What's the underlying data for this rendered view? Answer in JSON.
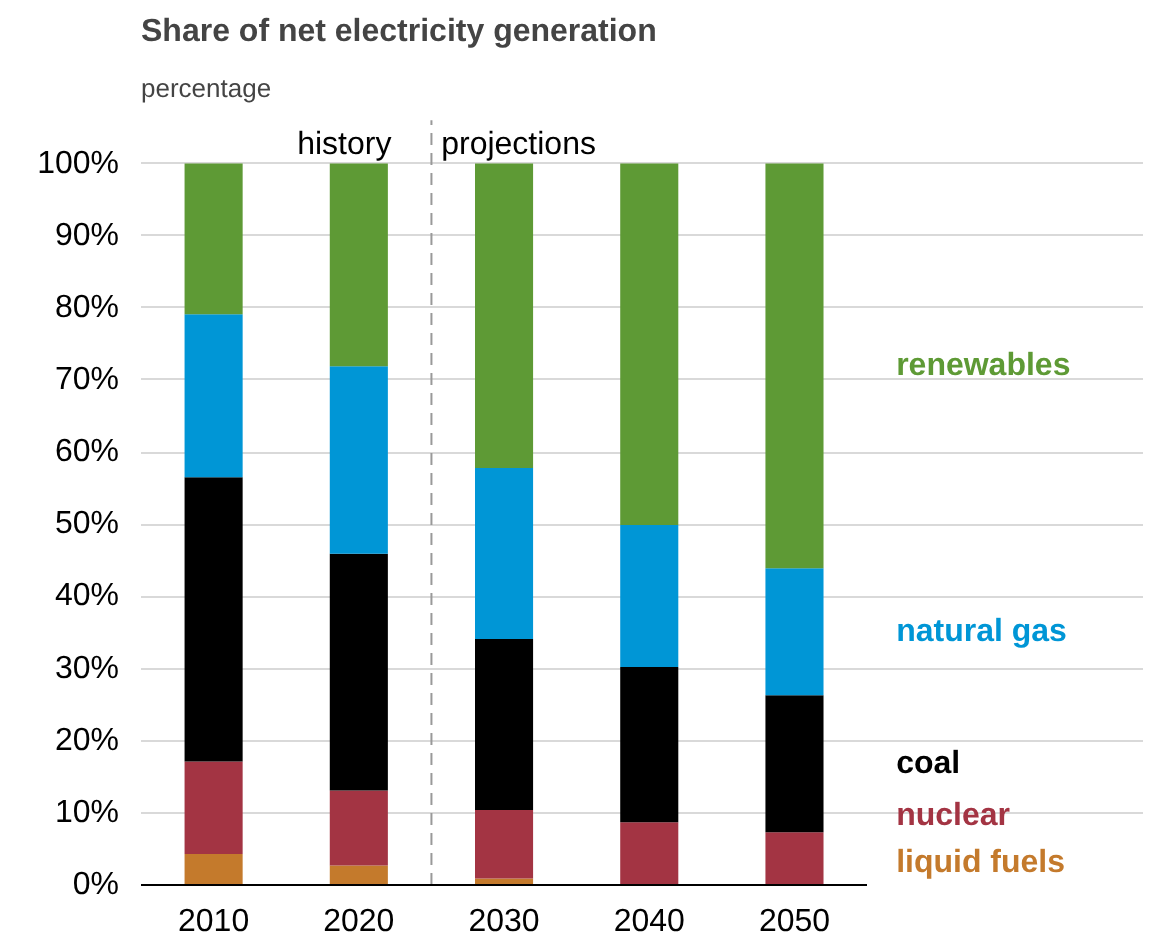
{
  "chart_data": {
    "type": "bar",
    "stacked": true,
    "title": "Share of net electricity generation",
    "subtitle": "percentage",
    "x": [
      2010,
      2020,
      2030,
      2040,
      2050
    ],
    "series": [
      {
        "name": "liquid fuels",
        "color": "#c47a2c",
        "values": [
          4.3,
          2.7,
          0.9,
          0,
          0
        ]
      },
      {
        "name": "nuclear",
        "color": "#a33443",
        "values": [
          12.8,
          10.4,
          9.5,
          8.7,
          7.3
        ]
      },
      {
        "name": "coal",
        "color": "#000000",
        "values": [
          39.4,
          32.8,
          23.7,
          21.5,
          19.0
        ]
      },
      {
        "name": "natural gas",
        "color": "#0096d6",
        "values": [
          22.6,
          26.0,
          23.7,
          19.7,
          17.6
        ]
      },
      {
        "name": "renewables",
        "color": "#5e9a35",
        "values": [
          20.9,
          28.1,
          42.2,
          50.1,
          56.1
        ]
      }
    ],
    "xlim": [
      2005,
      2055
    ],
    "xticks": [
      2010,
      2020,
      2030,
      2040,
      2050
    ],
    "ylim": [
      0,
      100
    ],
    "yticks": [
      {
        "value": 0,
        "label": "0%"
      },
      {
        "value": 10,
        "label": "10%"
      },
      {
        "value": 20,
        "label": "20%"
      },
      {
        "value": 30,
        "label": "30%"
      },
      {
        "value": 40,
        "label": "40%"
      },
      {
        "value": 50,
        "label": "50%"
      },
      {
        "value": 60,
        "label": "60%"
      },
      {
        "value": 70,
        "label": "70%"
      },
      {
        "value": 80,
        "label": "80%"
      },
      {
        "value": 90,
        "label": "90%"
      },
      {
        "value": 100,
        "label": "100%"
      }
    ],
    "grid": "y",
    "annotations": [
      {
        "text": "history",
        "x": 2019,
        "y": 100
      },
      {
        "text": "projections",
        "x": 2031,
        "y": 100
      }
    ],
    "ref_lines": [
      {
        "axis": "x",
        "value": 2025,
        "line_style": "dashed",
        "color": "#999999"
      }
    ]
  }
}
